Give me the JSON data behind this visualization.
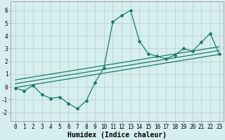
{
  "xlabel": "Humidex (Indice chaleur)",
  "ylabel": "",
  "xlim": [
    -0.5,
    23.5
  ],
  "ylim": [
    -2.7,
    6.7
  ],
  "yticks": [
    -2,
    -1,
    0,
    1,
    2,
    3,
    4,
    5,
    6
  ],
  "xticks": [
    0,
    1,
    2,
    3,
    4,
    5,
    6,
    7,
    8,
    9,
    10,
    11,
    12,
    13,
    14,
    15,
    16,
    17,
    18,
    19,
    20,
    21,
    22,
    23
  ],
  "main_x": [
    0,
    1,
    2,
    3,
    4,
    5,
    6,
    7,
    8,
    9,
    10,
    11,
    12,
    13,
    14,
    15,
    16,
    17,
    18,
    19,
    20,
    21,
    22,
    23
  ],
  "main_y": [
    -0.1,
    -0.3,
    0.1,
    -0.6,
    -0.9,
    -0.8,
    -1.3,
    -1.7,
    -1.1,
    0.35,
    1.5,
    5.1,
    5.6,
    6.0,
    3.6,
    2.6,
    2.4,
    2.2,
    2.5,
    3.0,
    2.8,
    3.5,
    4.2,
    2.6
  ],
  "line1_x": [
    0,
    23
  ],
  "line1_y": [
    -0.05,
    2.55
  ],
  "line2_x": [
    0,
    23
  ],
  "line2_y": [
    0.25,
    2.85
  ],
  "line3_x": [
    0,
    23
  ],
  "line3_y": [
    0.55,
    3.15
  ],
  "line_color": "#1a7a6e",
  "bg_color": "#d6eeed",
  "grid_color": "#b8d4d2",
  "tick_fontsize": 5.5,
  "label_fontsize": 7.0
}
